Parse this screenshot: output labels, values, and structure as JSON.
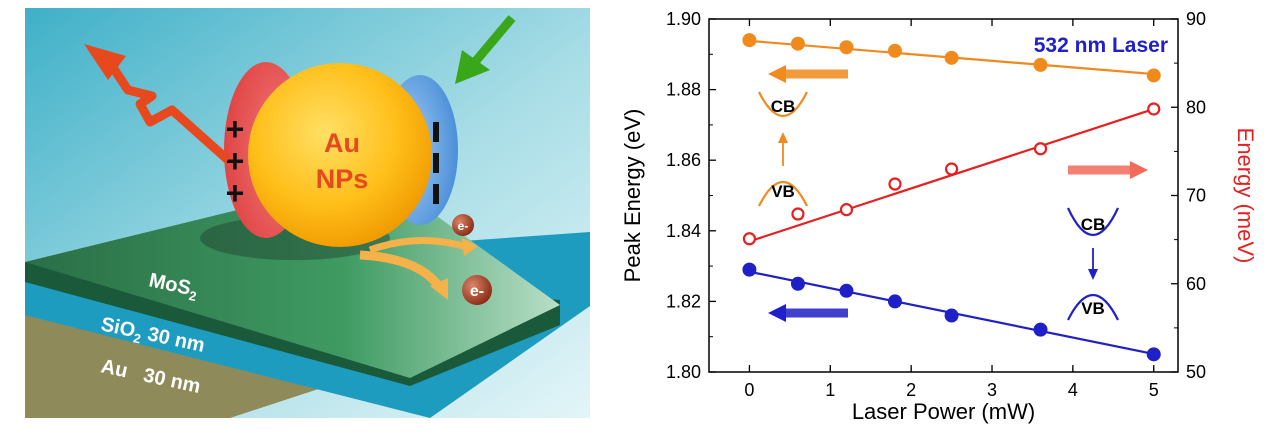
{
  "schematic": {
    "nps_line1": "Au",
    "nps_line2": "NPs",
    "plus": "+",
    "minus": "–",
    "electron": "e-",
    "mos2_base": "MoS",
    "mos2_sub": "2",
    "sio2_base": "SiO",
    "sio2_sub": "2",
    "sio2_thickness": "30 nm",
    "au_layer": "Au   30 nm",
    "colors": {
      "gold_np": "#f5b800",
      "mos2": "#2e7d4f",
      "sio2": "#1fa3c4",
      "au_film": "#8f8a5a",
      "red_arrow": "#e8481e",
      "green_arrow": "#3aa61a"
    },
    "icons": [
      "outgoing-emission-arrow-icon",
      "incoming-excitation-arrow-icon",
      "electron-transfer-arrow-icon"
    ]
  },
  "chart_labels": {
    "laser": "532 nm Laser",
    "cb": "CB",
    "vb": "VB"
  },
  "chart_data": {
    "type": "scatter",
    "xlabel": "Laser Power (mW)",
    "ylabel_left": "Peak Energy (eV)",
    "ylabel_right": "Energy (meV)",
    "xlim": [
      -0.5,
      5.3
    ],
    "ylim_left": [
      1.8,
      1.9
    ],
    "ylim_right": [
      50,
      90
    ],
    "x_ticks": [
      0,
      1,
      2,
      3,
      4,
      5
    ],
    "y_left_ticks": [
      "1.80",
      "1.82",
      "1.84",
      "1.86",
      "1.88",
      "1.90"
    ],
    "y_right_ticks": [
      50,
      60,
      70,
      80,
      90
    ],
    "series": [
      {
        "axis": "left",
        "color": "#f08a1c",
        "marker": "filled",
        "arrow": "left",
        "x": [
          0,
          0.6,
          1.2,
          1.8,
          2.5,
          3.6,
          5
        ],
        "y": [
          1.894,
          1.893,
          1.892,
          1.891,
          1.889,
          1.887,
          1.884
        ],
        "fit": [
          1.8938,
          1.8844
        ]
      },
      {
        "axis": "left",
        "color": "#2020c8",
        "marker": "filled",
        "arrow": "left",
        "x": [
          0,
          0.6,
          1.2,
          1.8,
          2.5,
          3.6,
          5
        ],
        "y": [
          1.829,
          1.825,
          1.823,
          1.82,
          1.816,
          1.812,
          1.805
        ],
        "fit": [
          1.8284,
          1.8051
        ]
      },
      {
        "axis": "right",
        "color": "#e62020",
        "marker": "open",
        "arrow": "right",
        "x": [
          0,
          0.6,
          1.2,
          1.8,
          2.5,
          3.6,
          5
        ],
        "y": [
          65.1,
          67.9,
          68.4,
          71.3,
          73.0,
          75.3,
          79.8
        ],
        "fit": [
          64.8,
          79.8
        ]
      }
    ]
  }
}
